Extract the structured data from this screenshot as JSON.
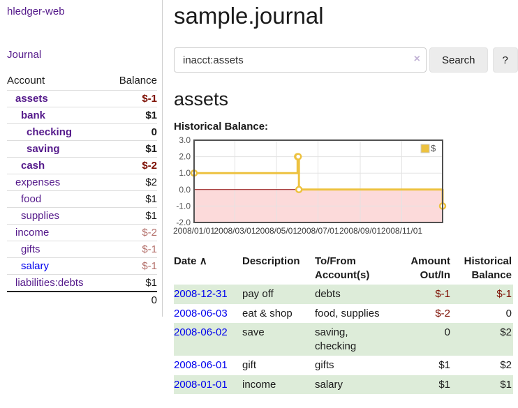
{
  "sidebar": {
    "app_title": "hledger-web",
    "journal_link": "Journal",
    "accounts_header": {
      "account": "Account",
      "balance": "Balance"
    },
    "accounts": [
      {
        "name": "assets",
        "level": 1,
        "bold": true,
        "balance": "$-1",
        "negative": "strong",
        "link_color": "purple"
      },
      {
        "name": "bank",
        "level": 2,
        "bold": true,
        "balance": "$1",
        "negative": null,
        "link_color": "purple"
      },
      {
        "name": "checking",
        "level": 3,
        "bold": true,
        "balance": "0",
        "negative": null,
        "link_color": "purple"
      },
      {
        "name": "saving",
        "level": 3,
        "bold": true,
        "balance": "$1",
        "negative": null,
        "link_color": "purple"
      },
      {
        "name": "cash",
        "level": 2,
        "bold": true,
        "balance": "$-2",
        "negative": "strong",
        "link_color": "purple"
      },
      {
        "name": "expenses",
        "level": 1,
        "bold": false,
        "balance": "$2",
        "negative": null,
        "link_color": "purple"
      },
      {
        "name": "food",
        "level": 2,
        "bold": false,
        "balance": "$1",
        "negative": null,
        "link_color": "purple"
      },
      {
        "name": "supplies",
        "level": 2,
        "bold": false,
        "balance": "$1",
        "negative": null,
        "link_color": "purple"
      },
      {
        "name": "income",
        "level": 1,
        "bold": false,
        "balance": "$-2",
        "negative": "soft",
        "link_color": "purple"
      },
      {
        "name": "gifts",
        "level": 2,
        "bold": false,
        "balance": "$-1",
        "negative": "soft",
        "link_color": "purple"
      },
      {
        "name": "salary",
        "level": 2,
        "bold": false,
        "balance": "$-1",
        "negative": "soft",
        "link_color": "blue"
      },
      {
        "name": "liabilities:debts",
        "level": 1,
        "bold": false,
        "balance": "$1",
        "negative": null,
        "link_color": "purple"
      }
    ],
    "total": "0"
  },
  "main": {
    "title": "sample.journal",
    "search": {
      "value": "inacct:assets",
      "button_label": "Search",
      "help_label": "?",
      "clear_icon": "×"
    },
    "account_heading": "assets",
    "chart_title": "Historical Balance:"
  },
  "register": {
    "headers": {
      "date": "Date",
      "description": "Description",
      "accounts": "To/From Account(s)",
      "amount": "Amount Out/In",
      "balance": "Historical Balance"
    },
    "sort_icon": "∧",
    "rows": [
      {
        "date": "2008-12-31",
        "description": "pay off",
        "accounts": "debts",
        "amount": "$-1",
        "amount_negative": true,
        "balance": "$-1",
        "balance_negative": true
      },
      {
        "date": "2008-06-03",
        "description": "eat & shop",
        "accounts": "food, supplies",
        "amount": "$-2",
        "amount_negative": true,
        "balance": "0",
        "balance_negative": false
      },
      {
        "date": "2008-06-02",
        "description": "save",
        "accounts": "saving, checking",
        "amount": "0",
        "amount_negative": false,
        "balance": "$2",
        "balance_negative": false
      },
      {
        "date": "2008-06-01",
        "description": "gift",
        "accounts": "gifts",
        "amount": "$1",
        "amount_negative": false,
        "balance": "$2",
        "balance_negative": false
      },
      {
        "date": "2008-01-01",
        "description": "income",
        "accounts": "salary",
        "amount": "$1",
        "amount_negative": false,
        "balance": "$1",
        "balance_negative": false
      }
    ]
  },
  "chart_data": {
    "type": "line",
    "title": "Historical Balance:",
    "legend": "$",
    "legend_position": "top-right",
    "grid": true,
    "xrange": [
      "2008-01-01",
      "2008-12-31"
    ],
    "ylim": [
      -2,
      3
    ],
    "yticks": [
      3.0,
      2.0,
      1.0,
      0.0,
      -1.0,
      -2.0
    ],
    "xticks": [
      "2008/01/01",
      "2008/03/01",
      "2008/05/01",
      "2008/07/01",
      "2008/09/01",
      "2008/11/01"
    ],
    "series": [
      {
        "name": "$",
        "color": "#EDC240",
        "step": true,
        "points": [
          [
            "2008-01-01",
            1
          ],
          [
            "2008-06-01",
            2
          ],
          [
            "2008-06-02",
            2
          ],
          [
            "2008-06-03",
            0
          ],
          [
            "2008-12-31",
            -1
          ]
        ]
      }
    ],
    "negative_region_color": "#fcdada",
    "zero_line_color": "#8b0000",
    "border_color": "#515151",
    "gridline_color": "#e3e3e3"
  },
  "colors": {
    "link_purple": "#551a8b",
    "link_blue": "#0000ee",
    "negative_strong": "#7c0d00",
    "negative_soft": "#b4706b",
    "row_green": "#ddecd9"
  }
}
